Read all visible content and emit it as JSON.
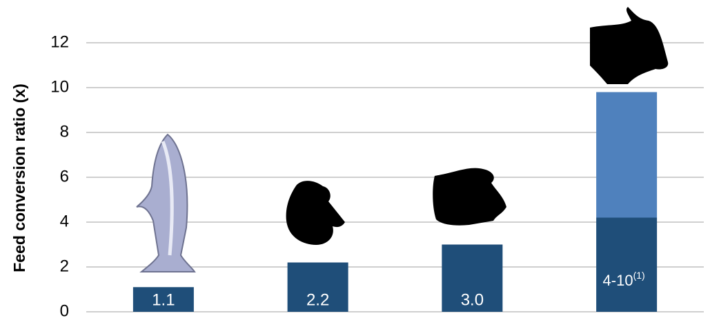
{
  "chart_data": {
    "type": "bar",
    "stacked": true,
    "ylabel": "Feed conversion ratio (x)",
    "categories": [
      null,
      null,
      null,
      null
    ],
    "series": [
      {
        "color": "#1f4e79",
        "values": [
          1.1,
          2.2,
          3.0,
          4.2
        ],
        "value_labels": [
          "1.1",
          "2.2",
          "3.0",
          null
        ]
      },
      {
        "color": "#4f81bd",
        "values": [
          null,
          null,
          null,
          5.6
        ]
      }
    ],
    "annotation": {
      "text": "4-10",
      "sup": "(1)"
    },
    "ylim": [
      0,
      12
    ],
    "yticks": [
      0,
      2,
      4,
      6,
      8,
      10,
      12
    ],
    "grid": true
  }
}
